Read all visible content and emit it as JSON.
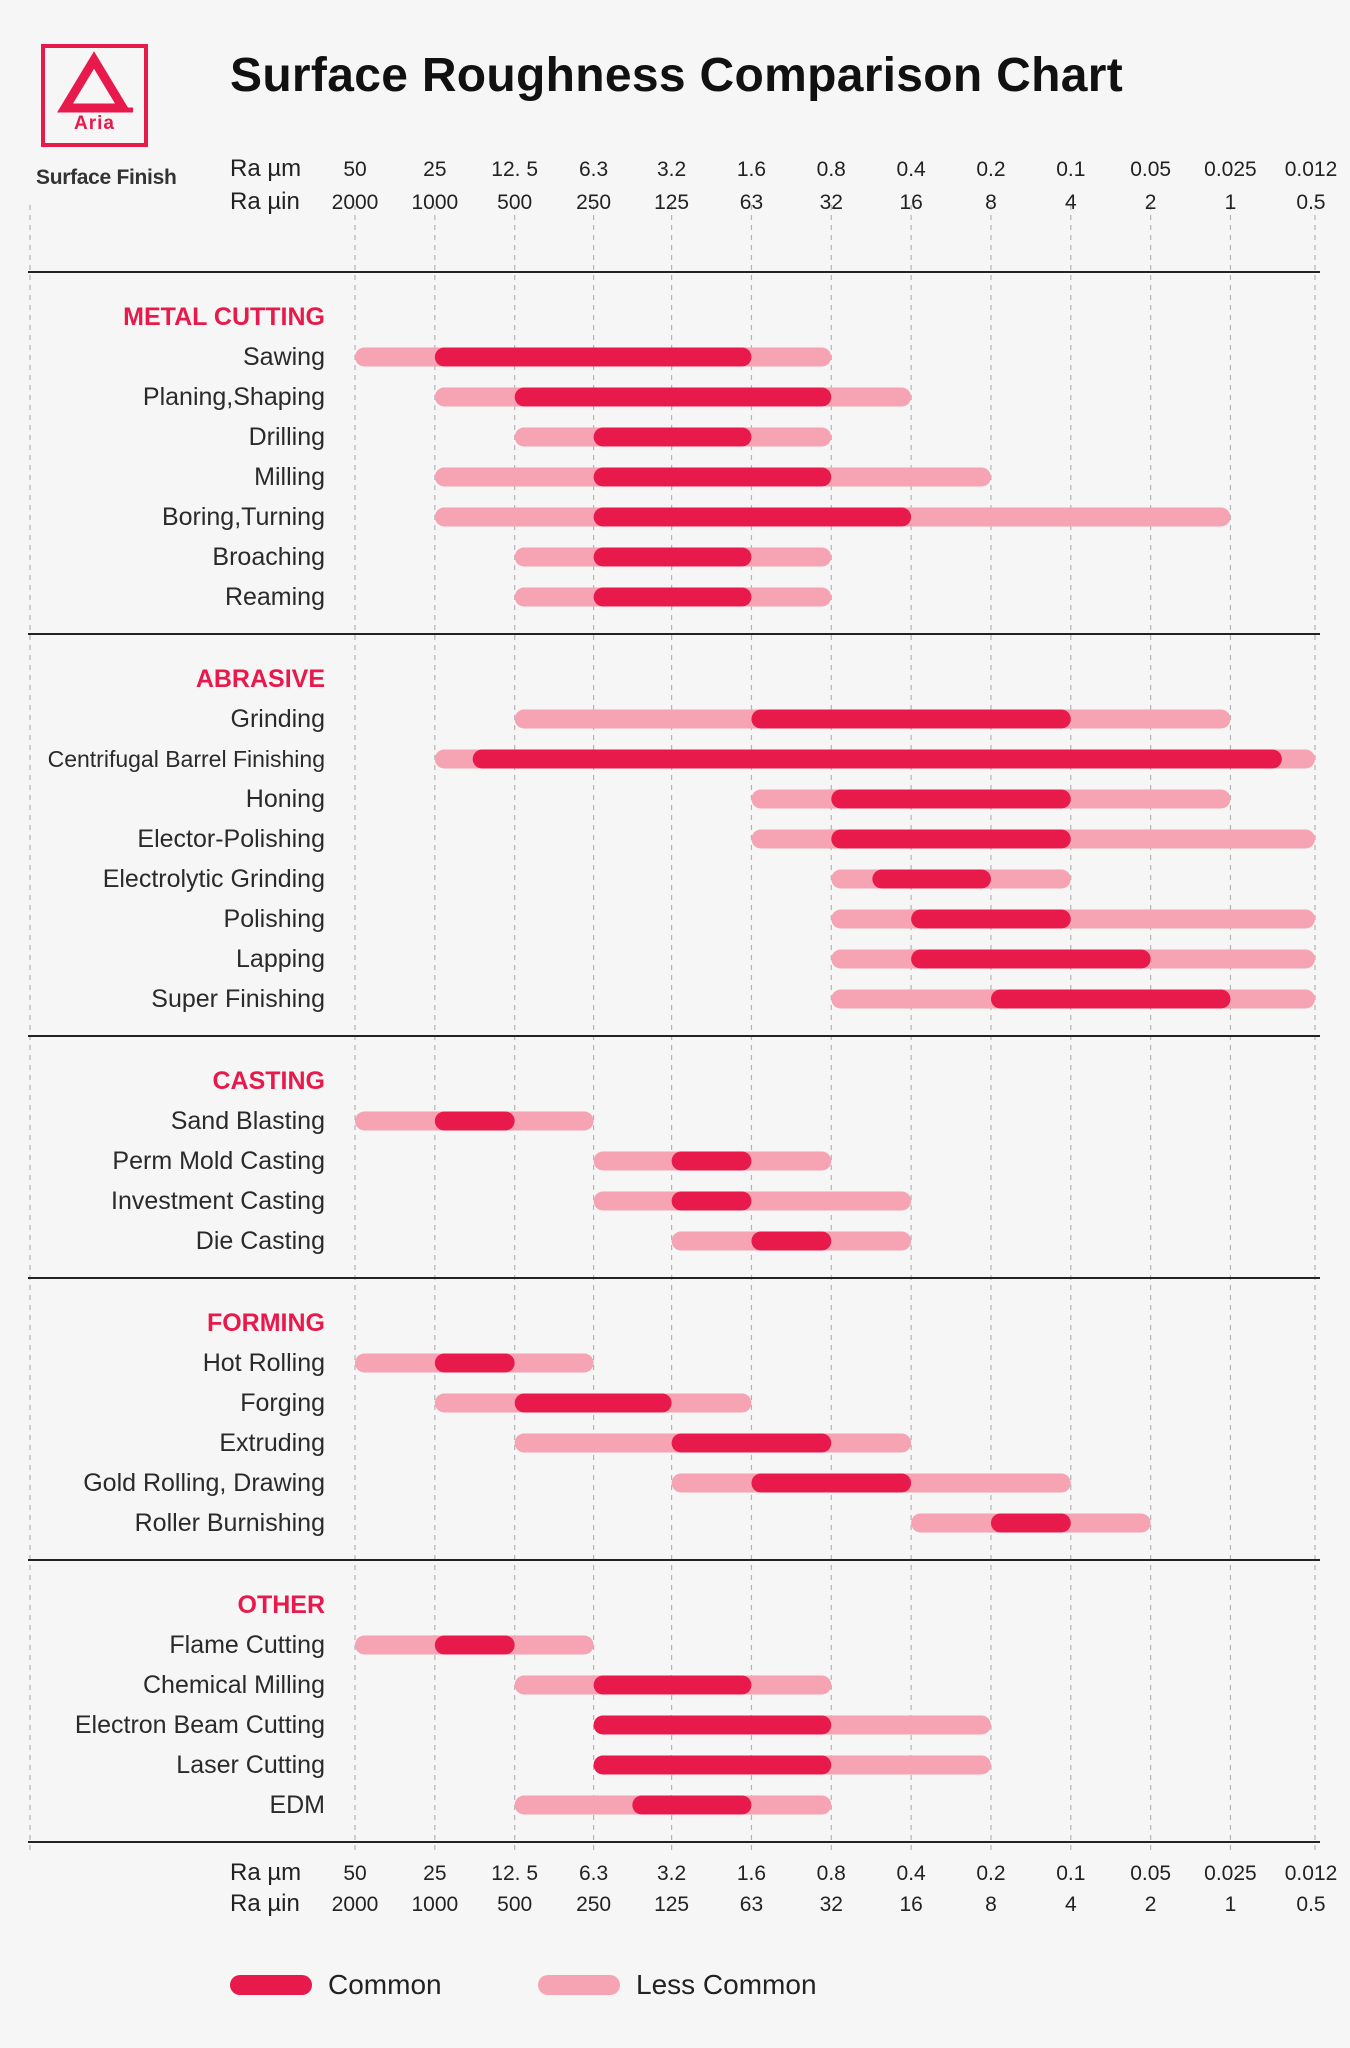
{
  "header": {
    "title": "Surface Roughness Comparison Chart",
    "logo_text": "Aria",
    "logo_subtitle": "Surface Finish"
  },
  "colors": {
    "common": "#e8194b",
    "less_common": "#f6a3b3",
    "accent": "#e8194b"
  },
  "legend": {
    "common_label": "Common",
    "less_common_label": "Less Common"
  },
  "chart_data": {
    "type": "bar",
    "title": "Surface Roughness Comparison Chart",
    "orientation": "horizontal-range",
    "axis_row_labels": [
      "Ra µm",
      "Ra µin"
    ],
    "ticks_um": [
      "50",
      "25",
      "12. 5",
      "6.3",
      "3.2",
      "1.6",
      "0.8",
      "0.4",
      "0.2",
      "0.1",
      "0.05",
      "0.025",
      "0.012"
    ],
    "ticks_uin": [
      "2000",
      "1000",
      "500",
      "250",
      "125",
      "63",
      "32",
      "16",
      "8",
      "4",
      "2",
      "1",
      "0.5"
    ],
    "groups": [
      {
        "name": "METAL CUTTING",
        "items": [
          {
            "name": "Sawing",
            "less_common": [
              50,
              0.8
            ],
            "common": [
              25,
              1.6
            ]
          },
          {
            "name": "Planing,Shaping",
            "less_common": [
              25,
              0.4
            ],
            "common": [
              12.5,
              0.8
            ]
          },
          {
            "name": "Drilling",
            "less_common": [
              12.5,
              0.8
            ],
            "common": [
              6.3,
              1.6
            ]
          },
          {
            "name": "Milling",
            "less_common": [
              25,
              0.2
            ],
            "common": [
              6.3,
              0.8
            ]
          },
          {
            "name": "Boring,Turning",
            "less_common": [
              25,
              0.025
            ],
            "common": [
              6.3,
              0.4
            ]
          },
          {
            "name": "Broaching",
            "less_common": [
              12.5,
              0.8
            ],
            "common": [
              6.3,
              1.6
            ]
          },
          {
            "name": "Reaming",
            "less_common": [
              12.5,
              0.8
            ],
            "common": [
              6.3,
              1.6
            ]
          }
        ]
      },
      {
        "name": "ABRASIVE",
        "items": [
          {
            "name": "Grinding",
            "less_common": [
              12.5,
              0.025
            ],
            "common": [
              1.6,
              0.1
            ]
          },
          {
            "name": "Centrifugal Barrel Finishing",
            "less_common": [
              25,
              0.012
            ],
            "common": [
              18,
              0.016
            ]
          },
          {
            "name": "Honing",
            "less_common": [
              1.6,
              0.025
            ],
            "common": [
              0.8,
              0.1
            ]
          },
          {
            "name": "Elector-Polishing",
            "less_common": [
              1.6,
              0.012
            ],
            "common": [
              0.8,
              0.1
            ]
          },
          {
            "name": "Electrolytic Grinding",
            "less_common": [
              0.8,
              0.1
            ],
            "common": [
              0.56,
              0.2
            ]
          },
          {
            "name": "Polishing",
            "less_common": [
              0.8,
              0.012
            ],
            "common": [
              0.4,
              0.1
            ]
          },
          {
            "name": "Lapping",
            "less_common": [
              0.8,
              0.012
            ],
            "common": [
              0.4,
              0.05
            ]
          },
          {
            "name": "Super Finishing",
            "less_common": [
              0.8,
              0.012
            ],
            "common": [
              0.2,
              0.025
            ]
          }
        ]
      },
      {
        "name": "CASTING",
        "items": [
          {
            "name": "Sand Blasting",
            "less_common": [
              50,
              6.3
            ],
            "common": [
              25,
              12.5
            ]
          },
          {
            "name": "Perm Mold Casting",
            "less_common": [
              6.3,
              0.8
            ],
            "common": [
              3.2,
              1.6
            ]
          },
          {
            "name": "Investment Casting",
            "less_common": [
              6.3,
              0.4
            ],
            "common": [
              3.2,
              1.6
            ]
          },
          {
            "name": "Die Casting",
            "less_common": [
              3.2,
              0.4
            ],
            "common": [
              1.6,
              0.8
            ]
          }
        ]
      },
      {
        "name": "FORMING",
        "items": [
          {
            "name": "Hot Rolling",
            "less_common": [
              50,
              6.3
            ],
            "common": [
              25,
              12.5
            ]
          },
          {
            "name": "Forging",
            "less_common": [
              25,
              1.6
            ],
            "common": [
              12.5,
              3.2
            ]
          },
          {
            "name": "Extruding",
            "less_common": [
              12.5,
              0.4
            ],
            "common": [
              3.2,
              0.8
            ]
          },
          {
            "name": "Gold Rolling, Drawing",
            "less_common": [
              3.2,
              0.1
            ],
            "common": [
              1.6,
              0.4
            ]
          },
          {
            "name": "Roller Burnishing",
            "less_common": [
              0.4,
              0.05
            ],
            "common": [
              0.2,
              0.1
            ]
          }
        ]
      },
      {
        "name": "OTHER",
        "items": [
          {
            "name": "Flame Cutting",
            "less_common": [
              50,
              6.3
            ],
            "common": [
              25,
              12.5
            ]
          },
          {
            "name": "Chemical Milling",
            "less_common": [
              12.5,
              0.8
            ],
            "common": [
              6.3,
              1.6
            ]
          },
          {
            "name": "Electron Beam Cutting",
            "less_common": [
              6.3,
              0.2
            ],
            "common": [
              6.3,
              0.8
            ]
          },
          {
            "name": "Laser Cutting",
            "less_common": [
              6.3,
              0.2
            ],
            "common": [
              6.3,
              0.8
            ]
          },
          {
            "name": "EDM",
            "less_common": [
              12.5,
              0.8
            ],
            "common": [
              4.5,
              1.6
            ]
          }
        ]
      }
    ]
  }
}
